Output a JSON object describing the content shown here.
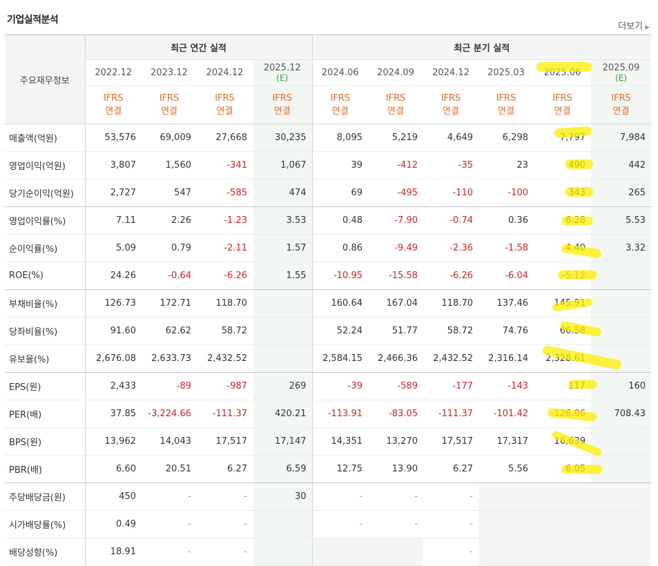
{
  "title": "기업실적분석",
  "more_label": "더보기",
  "table": {
    "corner_label": "주요재무정보",
    "groups": {
      "annual": "최근 연간 실적",
      "quarter": "최근 분기 실적"
    },
    "periods": [
      {
        "date": "2022.12",
        "est": ""
      },
      {
        "date": "2023.12",
        "est": ""
      },
      {
        "date": "2024.12",
        "est": ""
      },
      {
        "date": "2025.12",
        "est": "(E)"
      },
      {
        "date": "2024.06",
        "est": ""
      },
      {
        "date": "2024.09",
        "est": ""
      },
      {
        "date": "2024.12",
        "est": ""
      },
      {
        "date": "2025.03",
        "est": ""
      },
      {
        "date": "2025.06",
        "est": ""
      },
      {
        "date": "2025.09",
        "est": "(E)"
      }
    ],
    "acct_line1": "IFRS",
    "acct_line2": "연결",
    "rows": [
      {
        "label": "매출액(억원)",
        "values": [
          "53,576",
          "69,009",
          "27,668",
          "30,235",
          "8,095",
          "5,219",
          "4,649",
          "6,298",
          "7,797",
          "7,984"
        ]
      },
      {
        "label": "영업이익(억원)",
        "values": [
          "3,807",
          "1,560",
          "-341",
          "1,067",
          "39",
          "-412",
          "-35",
          "23",
          "490",
          "442"
        ]
      },
      {
        "label": "당기순이익(억원)",
        "values": [
          "2,727",
          "547",
          "-585",
          "474",
          "69",
          "-495",
          "-110",
          "-100",
          "343",
          "265"
        ]
      },
      {
        "label": "영업이익률(%)",
        "values": [
          "7.11",
          "2.26",
          "-1.23",
          "3.53",
          "0.48",
          "-7.90",
          "-0.74",
          "0.36",
          "6.28",
          "5.53"
        ]
      },
      {
        "label": "순이익률(%)",
        "values": [
          "5.09",
          "0.79",
          "-2.11",
          "1.57",
          "0.86",
          "-9.49",
          "-2.36",
          "-1.58",
          "4.40",
          "3.32"
        ]
      },
      {
        "label": "ROE(%)",
        "values": [
          "24.26",
          "-0.64",
          "-6.26",
          "1.55",
          "-10.95",
          "-15.58",
          "-6.26",
          "-6.04",
          "-5.12",
          ""
        ]
      },
      {
        "label": "부채비율(%)",
        "values": [
          "126.73",
          "172.71",
          "118.70",
          "",
          "160.64",
          "167.04",
          "118.70",
          "137.46",
          "145.91",
          ""
        ]
      },
      {
        "label": "당좌비율(%)",
        "values": [
          "91.60",
          "62.62",
          "58.72",
          "",
          "52.24",
          "51.77",
          "58.72",
          "74.76",
          "66.58",
          ""
        ]
      },
      {
        "label": "유보율(%)",
        "values": [
          "2,676.08",
          "2,633.73",
          "2,432.52",
          "",
          "2,584.15",
          "2,466.36",
          "2,432.52",
          "2,316.14",
          "2,328.61",
          ""
        ]
      },
      {
        "label": "EPS(원)",
        "values": [
          "2,433",
          "-89",
          "-987",
          "269",
          "-39",
          "-589",
          "-177",
          "-143",
          "117",
          "160"
        ]
      },
      {
        "label": "PER(배)",
        "values": [
          "37.85",
          "-3,224.66",
          "-111.37",
          "420.21",
          "-113.91",
          "-83.05",
          "-111.37",
          "-101.42",
          "-126.96",
          "708.43"
        ]
      },
      {
        "label": "BPS(원)",
        "values": [
          "13,962",
          "14,043",
          "17,517",
          "17,147",
          "14,351",
          "13,270",
          "17,517",
          "17,317",
          "16,639",
          ""
        ]
      },
      {
        "label": "PBR(배)",
        "values": [
          "6.60",
          "20.51",
          "6.27",
          "6.59",
          "12.75",
          "13.90",
          "6.27",
          "5.56",
          "6.05",
          ""
        ]
      },
      {
        "label": "주당배당금(원)",
        "values": [
          "450",
          "-",
          "-",
          "30",
          "-",
          "-",
          "-",
          "",
          "",
          ""
        ]
      },
      {
        "label": "시가배당률(%)",
        "values": [
          "0.49",
          "-",
          "-",
          "",
          "-",
          "-",
          "-",
          "",
          "",
          ""
        ]
      },
      {
        "label": "배당성향(%)",
        "values": [
          "18.91",
          "-",
          "-",
          "",
          "",
          "",
          "-",
          "",
          "",
          ""
        ]
      }
    ],
    "group_end_rows": [
      2,
      5,
      8,
      12
    ]
  },
  "colors": {
    "negative": "#e02020",
    "ifrs": "#ee6a22",
    "estimate": "#3a9a3a",
    "highlighter": "#ffee00"
  }
}
